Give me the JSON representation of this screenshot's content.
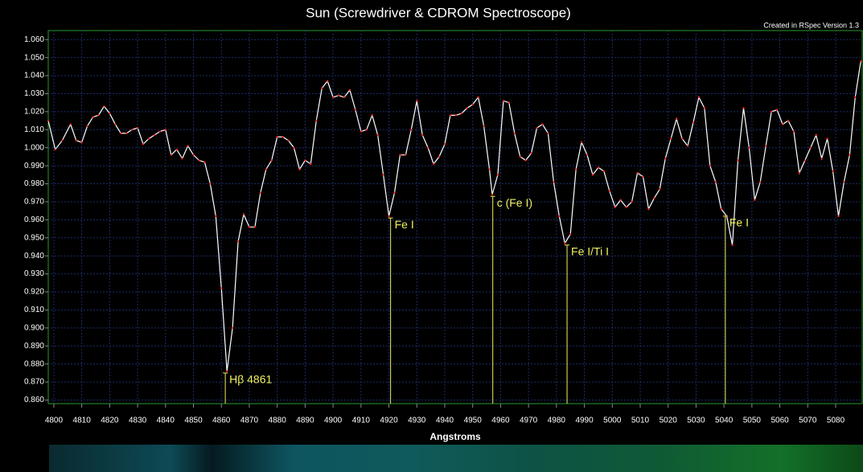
{
  "chart_data": {
    "type": "line",
    "title": "Sun (Screwdriver & CDROM Spectroscope)",
    "subtitle": "Created in RSpec Version 1.3",
    "x_label": "Angstroms",
    "color": "#ffffff",
    "marker_color": "#ff2020",
    "grid": true,
    "x": [
      4798,
      4800.5,
      4803,
      4806,
      4808,
      4810,
      4812,
      4814,
      4816,
      4818,
      4820,
      4822,
      4824,
      4826,
      4828,
      4830,
      4832,
      4834,
      4836,
      4838,
      4840,
      4842,
      4844,
      4846,
      4848,
      4850,
      4852,
      4854,
      4856,
      4858,
      4860,
      4862,
      4864,
      4866,
      4868,
      4870,
      4872,
      4874,
      4876,
      4878,
      4880,
      4882,
      4884,
      4886,
      4888,
      4890,
      4892,
      4894,
      4896,
      4898,
      4900,
      4902,
      4904,
      4906,
      4908,
      4910,
      4912,
      4914,
      4916,
      4918,
      4920,
      4922,
      4924,
      4926,
      4928,
      4930,
      4932,
      4934,
      4936,
      4938,
      4940,
      4942,
      4944,
      4946,
      4948,
      4950,
      4952,
      4954,
      4956,
      4957,
      4959,
      4961,
      4963,
      4965,
      4967,
      4969,
      4971,
      4973,
      4975,
      4977,
      4979,
      4981,
      4983,
      4985,
      4987,
      4989,
      4991,
      4993,
      4995,
      4997,
      4999,
      5001,
      5003,
      5005,
      5007,
      5009,
      5011,
      5013,
      5015,
      5017,
      5019,
      5021,
      5023,
      5025,
      5027,
      5029,
      5031,
      5033,
      5035,
      5037,
      5039,
      5041,
      5043,
      5045,
      5047,
      5049,
      5051,
      5053,
      5055,
      5057,
      5059,
      5061,
      5063,
      5065,
      5067,
      5069,
      5071,
      5073,
      5075,
      5077,
      5079,
      5081,
      5083,
      5085,
      5087,
      5089
    ],
    "values": [
      1.015,
      0.999,
      1.004,
      1.013,
      1.004,
      1.003,
      1.012,
      1.017,
      1.018,
      1.023,
      1.019,
      1.013,
      1.008,
      1.008,
      1.01,
      1.011,
      1.002,
      1.005,
      1.007,
      1.009,
      1.01,
      0.996,
      0.999,
      0.994,
      1.001,
      0.996,
      0.993,
      0.992,
      0.98,
      0.962,
      0.922,
      0.876,
      0.9,
      0.948,
      0.963,
      0.956,
      0.956,
      0.975,
      0.988,
      0.993,
      1.006,
      1.006,
      1.004,
      1.0,
      0.988,
      0.993,
      0.991,
      1.015,
      1.033,
      1.037,
      1.028,
      1.029,
      1.028,
      1.032,
      1.021,
      1.009,
      1.01,
      1.018,
      1.007,
      0.985,
      0.962,
      0.975,
      0.996,
      0.996,
      1.01,
      1.026,
      1.007,
      1.0,
      0.991,
      0.995,
      1.002,
      1.018,
      1.018,
      1.019,
      1.022,
      1.024,
      1.028,
      1.012,
      0.988,
      0.974,
      0.985,
      1.026,
      1.025,
      1.008,
      0.995,
      0.993,
      0.997,
      1.011,
      1.013,
      1.008,
      0.981,
      0.962,
      0.947,
      0.952,
      0.988,
      1.003,
      0.996,
      0.985,
      0.989,
      0.987,
      0.976,
      0.967,
      0.971,
      0.967,
      0.97,
      0.986,
      0.984,
      0.966,
      0.972,
      0.977,
      0.994,
      1.005,
      1.016,
      1.005,
      1.001,
      1.014,
      1.028,
      1.022,
      0.99,
      0.981,
      0.966,
      0.962,
      0.946,
      0.993,
      1.022,
      1.0,
      0.971,
      0.981,
      1.001,
      1.02,
      1.021,
      1.013,
      1.015,
      1.009,
      0.986,
      0.993,
      1.0,
      1.007,
      0.994,
      1.005,
      0.987,
      0.962,
      0.981,
      0.996,
      1.028,
      1.048
    ],
    "xlim": [
      4798,
      5089.5
    ],
    "ylim": [
      0.858,
      1.065
    ],
    "xticks": [
      4800,
      4810,
      4820,
      4830,
      4840,
      4850,
      4860,
      4870,
      4880,
      4890,
      4900,
      4910,
      4920,
      4930,
      4940,
      4950,
      4960,
      4970,
      4980,
      4990,
      5000,
      5010,
      5020,
      5030,
      5040,
      5050,
      5060,
      5070,
      5080
    ],
    "yticks": [
      {
        "value": 0.86,
        "label": "0.860"
      },
      {
        "value": 0.87,
        "label": "0.870"
      },
      {
        "value": 0.88,
        "label": "0.880"
      },
      {
        "value": 0.89,
        "label": "0.890"
      },
      {
        "value": 0.9,
        "label": "0.900"
      },
      {
        "value": 0.91,
        "label": "0.910"
      },
      {
        "value": 0.92,
        "label": "0.920"
      },
      {
        "value": 0.93,
        "label": "0.930"
      },
      {
        "value": 0.94,
        "label": "0.940"
      },
      {
        "value": 0.95,
        "label": "0.950"
      },
      {
        "value": 0.96,
        "label": "0.960"
      },
      {
        "value": 0.97,
        "label": "0.970"
      },
      {
        "value": 0.98,
        "label": "0.980"
      },
      {
        "value": 0.99,
        "label": "0.990"
      },
      {
        "value": 1.0,
        "label": "1.000"
      },
      {
        "value": 1.01,
        "label": "1.010"
      },
      {
        "value": 1.02,
        "label": "1.020"
      },
      {
        "value": 1.03,
        "label": "1.030"
      },
      {
        "value": 1.04,
        "label": "1.040"
      },
      {
        "value": 1.05,
        "label": "1.050"
      },
      {
        "value": 1.06,
        "label": "1.060"
      }
    ],
    "annotations": [
      {
        "x": 4861.4,
        "y": 0.875,
        "text": "Hβ 4861"
      },
      {
        "x": 4920.6,
        "y": 0.961,
        "text": "Fe I"
      },
      {
        "x": 4957.2,
        "y": 0.973,
        "text": "c (Fe I)"
      },
      {
        "x": 4983.8,
        "y": 0.946,
        "text": "Fe I/Ti I"
      },
      {
        "x": 5040.5,
        "y": 0.962,
        "text": "Fe I"
      }
    ],
    "annotation_color": "#f0f060"
  }
}
